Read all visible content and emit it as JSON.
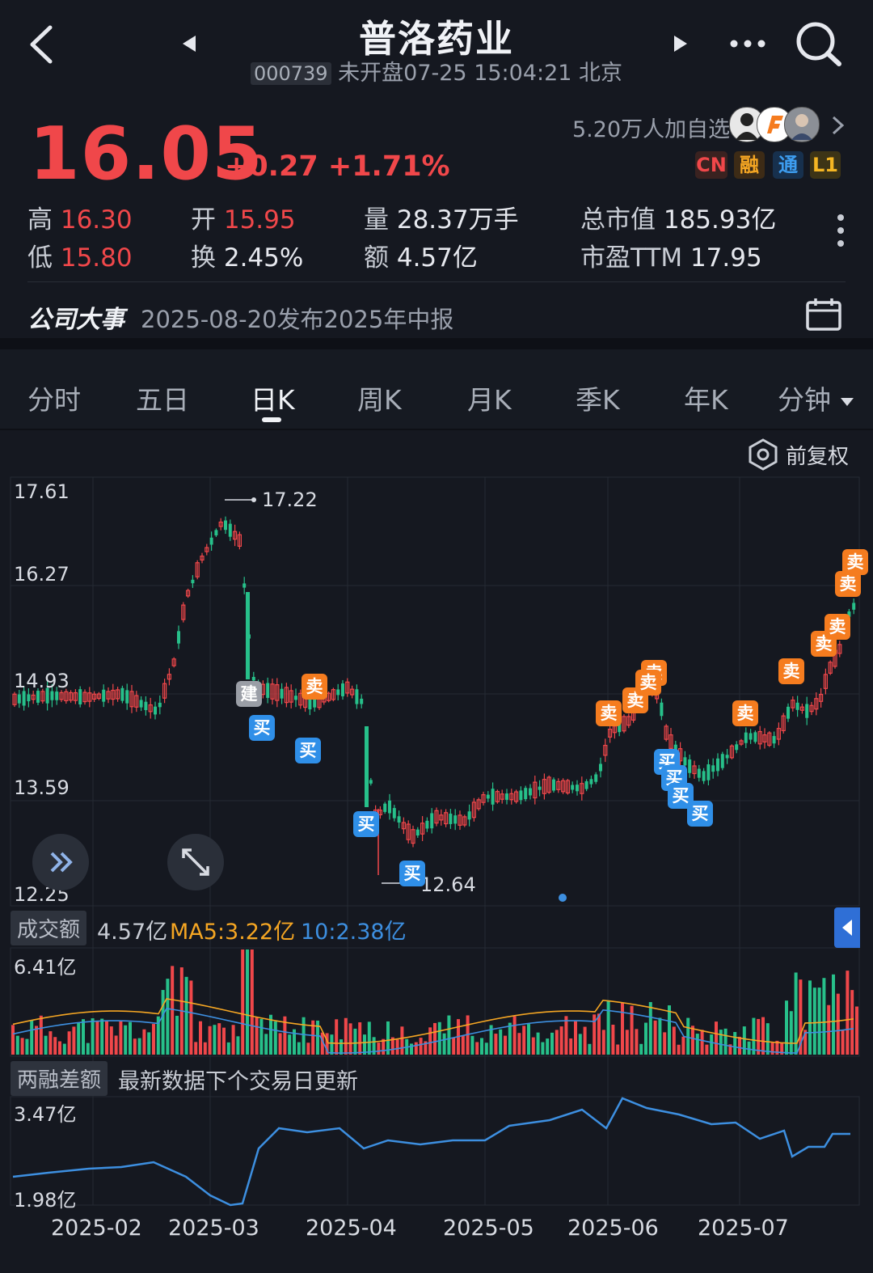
{
  "header": {
    "stock_name": "普洛药业",
    "code": "000739",
    "status_time": "未开盘07-25 15:04:21 北京"
  },
  "quote": {
    "price": "16.05",
    "change": "+0.27",
    "change_pct": "+1.71%",
    "followers": "5.20万人加自选",
    "badges": [
      "CN",
      "融",
      "通",
      "L1"
    ]
  },
  "stats": {
    "high_label": "高",
    "high": "16.30",
    "open_label": "开",
    "open": "15.95",
    "volume_label": "量",
    "volume": "28.37万手",
    "mktcap_label": "总市值",
    "mktcap": "185.93亿",
    "low_label": "低",
    "low": "15.80",
    "turnover_label": "换",
    "turnover": "2.45%",
    "amount_label": "额",
    "amount": "4.57亿",
    "pe_label": "市盈TTM",
    "pe": "17.95"
  },
  "events": {
    "label": "公司大事",
    "text": "2025-08-20发布2025年中报"
  },
  "tabs": [
    "分时",
    "五日",
    "日K",
    "周K",
    "月K",
    "季K",
    "年K",
    "分钟"
  ],
  "active_tab": "日K",
  "adjust_label": "前复权",
  "kline": {
    "y_ticks": [
      "17.61",
      "16.27",
      "14.93",
      "13.59",
      "12.25"
    ],
    "max_label": "17.22",
    "min_label": "12.64",
    "markers": {
      "sell": "卖",
      "buy": "买",
      "build": "建"
    }
  },
  "volume_panel": {
    "label": "成交额",
    "value": "4.57亿",
    "ma5": "MA5:3.22亿",
    "ma10": "10:2.38亿",
    "max_tick": "6.41亿"
  },
  "margin_panel": {
    "label": "两融差额",
    "note": "最新数据下个交易日更新",
    "top_tick": "3.47亿",
    "bottom_tick": "1.98亿"
  },
  "x_dates": [
    "2025-02",
    "2025-03",
    "2025-04",
    "2025-05",
    "2025-06",
    "2025-07"
  ],
  "colors": {
    "up": "#f0474a",
    "down": "#27c08a",
    "sell": "#f57c1f",
    "buy": "#2f8fe8",
    "ma5": "#f5a623",
    "ma10": "#3d8fe0"
  }
}
